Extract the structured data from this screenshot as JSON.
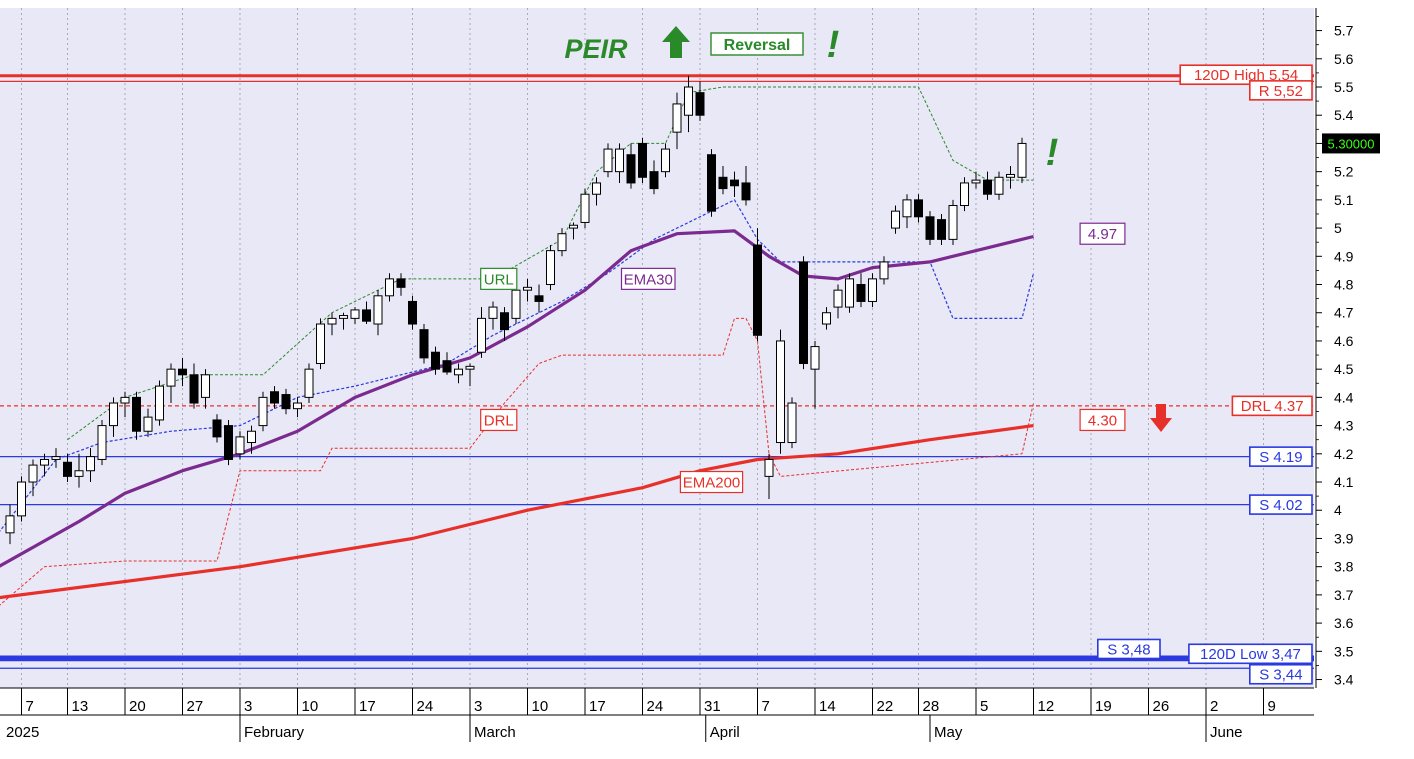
{
  "chart_data": {
    "type": "candlestick",
    "title": "PEIR",
    "signal": "Reversal",
    "exclamation": "!",
    "ylim": [
      3.37,
      5.78
    ],
    "y_ticks": [
      3.4,
      3.5,
      3.6,
      3.7,
      3.8,
      3.9,
      4.0,
      4.1,
      4.2,
      4.3,
      4.4,
      4.5,
      4.6,
      4.7,
      4.8,
      4.9,
      5.0,
      5.1,
      5.2,
      5.3,
      5.4,
      5.5,
      5.6,
      5.7
    ],
    "last_price": "5.30000",
    "x_ticks": [
      {
        "label": "7",
        "i": 1
      },
      {
        "label": "13",
        "i": 5
      },
      {
        "label": "20",
        "i": 10
      },
      {
        "label": "27",
        "i": 15
      },
      {
        "label": "3",
        "i": 20
      },
      {
        "label": "10",
        "i": 25
      },
      {
        "label": "17",
        "i": 30
      },
      {
        "label": "24",
        "i": 35
      },
      {
        "label": "3",
        "i": 40
      },
      {
        "label": "10",
        "i": 45
      },
      {
        "label": "17",
        "i": 50
      },
      {
        "label": "24",
        "i": 55
      },
      {
        "label": "31",
        "i": 60
      },
      {
        "label": "7",
        "i": 65
      },
      {
        "label": "14",
        "i": 70
      },
      {
        "label": "22",
        "i": 75
      },
      {
        "label": "28",
        "i": 79
      },
      {
        "label": "5",
        "i": 84
      },
      {
        "label": "12",
        "i": 89
      },
      {
        "label": "19",
        "i": 94
      },
      {
        "label": "26",
        "i": 99
      },
      {
        "label": "2",
        "i": 104
      },
      {
        "label": "9",
        "i": 109
      }
    ],
    "month_labels": [
      {
        "label": "2025",
        "i": -0.5
      },
      {
        "label": "February",
        "i": 20
      },
      {
        "label": "March",
        "i": 40
      },
      {
        "label": "April",
        "i": 60.5
      },
      {
        "label": "May",
        "i": 80
      },
      {
        "label": "June",
        "i": 104
      }
    ],
    "candles": [
      [
        3.92,
        4.02,
        3.88,
        3.98
      ],
      [
        3.98,
        4.12,
        3.96,
        4.1
      ],
      [
        4.1,
        4.18,
        4.05,
        4.16
      ],
      [
        4.16,
        4.2,
        4.12,
        4.18
      ],
      [
        4.18,
        4.22,
        4.15,
        4.19
      ],
      [
        4.17,
        4.2,
        4.1,
        4.12
      ],
      [
        4.12,
        4.2,
        4.08,
        4.14
      ],
      [
        4.14,
        4.22,
        4.1,
        4.19
      ],
      [
        4.18,
        4.32,
        4.16,
        4.3
      ],
      [
        4.3,
        4.4,
        4.26,
        4.38
      ],
      [
        4.38,
        4.42,
        4.33,
        4.4
      ],
      [
        4.4,
        4.42,
        4.25,
        4.28
      ],
      [
        4.28,
        4.36,
        4.26,
        4.33
      ],
      [
        4.32,
        4.46,
        4.3,
        4.44
      ],
      [
        4.44,
        4.52,
        4.38,
        4.5
      ],
      [
        4.5,
        4.54,
        4.44,
        4.48
      ],
      [
        4.48,
        4.52,
        4.36,
        4.38
      ],
      [
        4.4,
        4.5,
        4.36,
        4.48
      ],
      [
        4.32,
        4.34,
        4.24,
        4.26
      ],
      [
        4.3,
        4.32,
        4.16,
        4.18
      ],
      [
        4.2,
        4.28,
        4.18,
        4.26
      ],
      [
        4.24,
        4.3,
        4.2,
        4.28
      ],
      [
        4.3,
        4.42,
        4.28,
        4.4
      ],
      [
        4.42,
        4.44,
        4.36,
        4.38
      ],
      [
        4.41,
        4.43,
        4.34,
        4.36
      ],
      [
        4.36,
        4.4,
        4.33,
        4.38
      ],
      [
        4.4,
        4.52,
        4.38,
        4.5
      ],
      [
        4.52,
        4.68,
        4.5,
        4.66
      ],
      [
        4.66,
        4.7,
        4.62,
        4.68
      ],
      [
        4.68,
        4.7,
        4.64,
        4.69
      ],
      [
        4.68,
        4.72,
        4.66,
        4.71
      ],
      [
        4.71,
        4.74,
        4.66,
        4.67
      ],
      [
        4.66,
        4.78,
        4.62,
        4.76
      ],
      [
        4.76,
        4.84,
        4.74,
        4.82
      ],
      [
        4.82,
        4.84,
        4.76,
        4.79
      ],
      [
        4.74,
        4.76,
        4.64,
        4.66
      ],
      [
        4.64,
        4.66,
        4.52,
        4.54
      ],
      [
        4.56,
        4.58,
        4.48,
        4.5
      ],
      [
        4.53,
        4.56,
        4.48,
        4.49
      ],
      [
        4.48,
        4.52,
        4.45,
        4.5
      ],
      [
        4.5,
        4.52,
        4.44,
        4.51
      ],
      [
        4.56,
        4.72,
        4.54,
        4.68
      ],
      [
        4.68,
        4.74,
        4.64,
        4.72
      ],
      [
        4.7,
        4.72,
        4.6,
        4.64
      ],
      [
        4.68,
        4.8,
        4.66,
        4.78
      ],
      [
        4.78,
        4.82,
        4.74,
        4.79
      ],
      [
        4.76,
        4.8,
        4.7,
        4.74
      ],
      [
        4.8,
        4.94,
        4.78,
        4.92
      ],
      [
        4.92,
        5.0,
        4.9,
        4.98
      ],
      [
        5.0,
        5.02,
        4.96,
        5.01
      ],
      [
        5.02,
        5.14,
        5.0,
        5.12
      ],
      [
        5.12,
        5.18,
        5.08,
        5.16
      ],
      [
        5.2,
        5.3,
        5.18,
        5.28
      ],
      [
        5.2,
        5.3,
        5.16,
        5.28
      ],
      [
        5.26,
        5.3,
        5.14,
        5.16
      ],
      [
        5.3,
        5.32,
        5.16,
        5.18
      ],
      [
        5.2,
        5.24,
        5.12,
        5.14
      ],
      [
        5.2,
        5.3,
        5.18,
        5.28
      ],
      [
        5.34,
        5.48,
        5.28,
        5.44
      ],
      [
        5.4,
        5.54,
        5.34,
        5.5
      ],
      [
        5.48,
        5.52,
        5.38,
        5.4
      ],
      [
        5.26,
        5.28,
        5.04,
        5.06
      ],
      [
        5.18,
        5.22,
        5.12,
        5.14
      ],
      [
        5.17,
        5.2,
        5.11,
        5.15
      ],
      [
        5.16,
        5.22,
        5.08,
        5.1
      ],
      [
        4.94,
        5.0,
        4.6,
        4.62
      ],
      [
        4.12,
        4.2,
        4.04,
        4.18
      ],
      [
        4.24,
        4.64,
        4.2,
        4.6
      ],
      [
        4.24,
        4.4,
        4.22,
        4.38
      ],
      [
        4.88,
        4.9,
        4.5,
        4.52
      ],
      [
        4.5,
        4.6,
        4.36,
        4.58
      ],
      [
        4.66,
        4.72,
        4.64,
        4.7
      ],
      [
        4.72,
        4.8,
        4.68,
        4.78
      ],
      [
        4.72,
        4.84,
        4.7,
        4.82
      ],
      [
        4.8,
        4.84,
        4.72,
        4.74
      ],
      [
        4.74,
        4.84,
        4.72,
        4.82
      ],
      [
        4.82,
        4.9,
        4.8,
        4.88
      ],
      [
        5.0,
        5.08,
        4.98,
        5.06
      ],
      [
        5.04,
        5.12,
        5.0,
        5.1
      ],
      [
        5.1,
        5.12,
        5.02,
        5.04
      ],
      [
        5.04,
        5.06,
        4.94,
        4.96
      ],
      [
        5.03,
        5.05,
        4.94,
        4.96
      ],
      [
        4.96,
        5.1,
        4.94,
        5.08
      ],
      [
        5.08,
        5.18,
        5.06,
        5.16
      ],
      [
        5.16,
        5.2,
        5.14,
        5.17
      ],
      [
        5.17,
        5.2,
        5.1,
        5.12
      ],
      [
        5.12,
        5.2,
        5.1,
        5.18
      ],
      [
        5.18,
        5.22,
        5.14,
        5.19
      ],
      [
        5.18,
        5.32,
        5.16,
        5.3
      ]
    ],
    "lines": {
      "ema30": {
        "label": "EMA30",
        "color": "#7b2a90",
        "points": [
          [
            -1,
            3.8
          ],
          [
            6,
            3.96
          ],
          [
            10,
            4.06
          ],
          [
            15,
            4.14
          ],
          [
            20,
            4.2
          ],
          [
            25,
            4.28
          ],
          [
            30,
            4.4
          ],
          [
            35,
            4.48
          ],
          [
            40,
            4.54
          ],
          [
            45,
            4.65
          ],
          [
            50,
            4.78
          ],
          [
            54,
            4.92
          ],
          [
            58,
            4.98
          ],
          [
            63,
            4.99
          ],
          [
            66,
            4.9
          ],
          [
            69,
            4.83
          ],
          [
            72,
            4.82
          ],
          [
            75,
            4.86
          ],
          [
            80,
            4.88
          ],
          [
            85,
            4.93
          ],
          [
            89,
            4.97
          ]
        ]
      },
      "ema200": {
        "label": "EMA200",
        "color": "#e8302a",
        "points": [
          [
            -1,
            3.69
          ],
          [
            20,
            3.8
          ],
          [
            35,
            3.9
          ],
          [
            45,
            4.0
          ],
          [
            55,
            4.08
          ],
          [
            60,
            4.14
          ],
          [
            65,
            4.18
          ],
          [
            72,
            4.2
          ],
          [
            80,
            4.25
          ],
          [
            89,
            4.3
          ]
        ]
      },
      "url": {
        "label": "URL",
        "color": "#2a8a2a",
        "points": [
          [
            5,
            4.25
          ],
          [
            10,
            4.4
          ],
          [
            16,
            4.48
          ],
          [
            22,
            4.48
          ],
          [
            28,
            4.7
          ],
          [
            34,
            4.82
          ],
          [
            42,
            4.82
          ],
          [
            48,
            4.96
          ],
          [
            51,
            5.2
          ],
          [
            54,
            5.3
          ],
          [
            57,
            5.3
          ],
          [
            59,
            5.48
          ],
          [
            62,
            5.5
          ],
          [
            79,
            5.5
          ],
          [
            82,
            5.24
          ],
          [
            85,
            5.17
          ],
          [
            89,
            5.17
          ]
        ]
      },
      "drl": {
        "label": "DRL",
        "color": "#e8302a",
        "points": [
          [
            -1,
            3.66
          ],
          [
            3,
            3.8
          ],
          [
            10,
            3.82
          ],
          [
            18,
            3.82
          ],
          [
            20,
            4.14
          ],
          [
            27,
            4.14
          ],
          [
            28,
            4.22
          ],
          [
            40,
            4.22
          ],
          [
            43,
            4.38
          ],
          [
            46,
            4.52
          ],
          [
            48,
            4.55
          ],
          [
            62,
            4.55
          ],
          [
            63,
            4.68
          ],
          [
            64,
            4.68
          ],
          [
            65,
            4.6
          ],
          [
            66,
            4.2
          ],
          [
            67,
            4.12
          ],
          [
            88,
            4.2
          ],
          [
            89,
            4.38
          ]
        ]
      },
      "band": {
        "color": "#2a3ae0",
        "points": [
          [
            -1,
            3.92
          ],
          [
            4,
            4.18
          ],
          [
            8,
            4.24
          ],
          [
            14,
            4.28
          ],
          [
            20,
            4.3
          ],
          [
            25,
            4.4
          ],
          [
            30,
            4.44
          ],
          [
            38,
            4.52
          ],
          [
            42,
            4.62
          ],
          [
            48,
            4.74
          ],
          [
            52,
            4.84
          ],
          [
            56,
            4.96
          ],
          [
            60,
            5.04
          ],
          [
            63,
            5.1
          ],
          [
            65,
            4.96
          ],
          [
            67,
            4.88
          ],
          [
            70,
            4.88
          ],
          [
            75,
            4.88
          ],
          [
            80,
            4.88
          ],
          [
            82,
            4.68
          ],
          [
            84,
            4.68
          ],
          [
            88,
            4.68
          ],
          [
            89,
            4.84
          ]
        ]
      }
    },
    "levels": [
      {
        "label": "120D High 5.54",
        "value": 5.54,
        "color": "#e8302a",
        "style": "solid-thick"
      },
      {
        "label": "R 5,52",
        "value": 5.52,
        "color": "#e8302a",
        "style": "solid"
      },
      {
        "label": "DRL 4.37",
        "value": 4.37,
        "color": "#e8302a",
        "style": "dashed"
      },
      {
        "label": "S 4.19",
        "value": 4.19,
        "color": "#2a3ae0",
        "style": "solid"
      },
      {
        "label": "S 4.02",
        "value": 4.02,
        "color": "#2a3ae0",
        "style": "solid"
      },
      {
        "label": "S 3,48",
        "value": 3.48,
        "color": "#2a3ae0",
        "style": "solid-thick"
      },
      {
        "label": "120D Low 3,47",
        "value": 3.47,
        "color": "#2a3ae0",
        "style": "solid-thick"
      },
      {
        "label": "S 3,44",
        "value": 3.44,
        "color": "#2a3ae0",
        "style": "solid"
      }
    ],
    "value_labels": [
      {
        "text": "4.97",
        "value": 4.97,
        "color": "#7b2a90"
      },
      {
        "text": "4.30",
        "value": 4.3,
        "color": "#e8302a"
      }
    ],
    "colors": {
      "plot_bg": "#e9e8f6",
      "grid": "#9a9aa8",
      "bull_body": "#ffffff",
      "bear_body": "#000000",
      "signal_green": "#2a8a2a",
      "price_box_bg": "#000000",
      "price_box_text": "#39ff14"
    }
  }
}
